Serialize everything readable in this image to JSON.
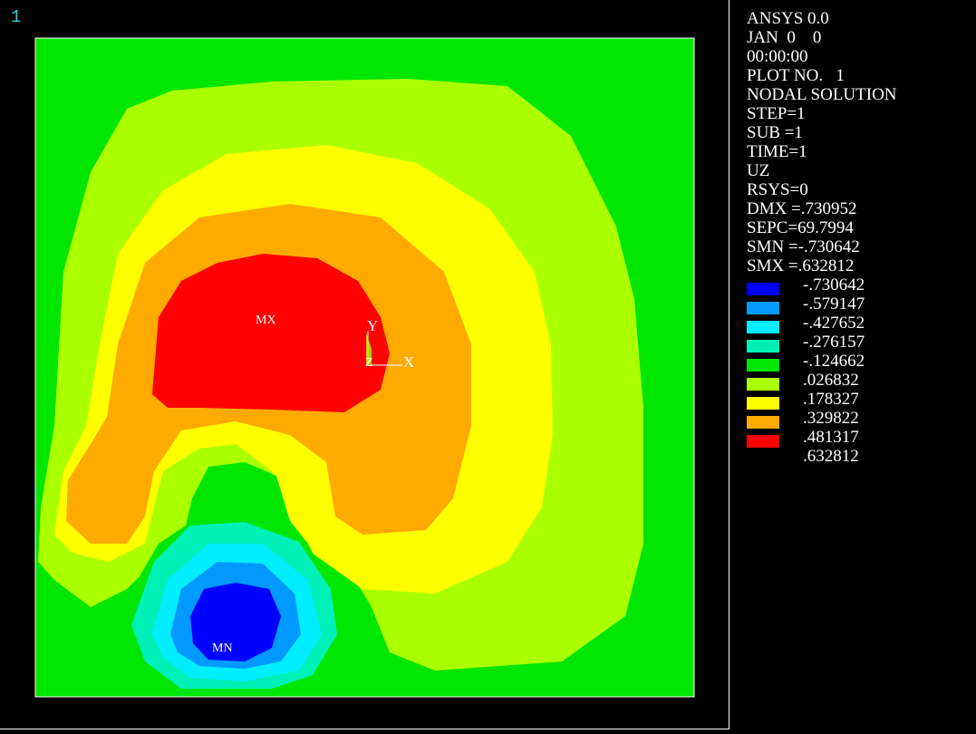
{
  "window": {
    "number": "1"
  },
  "info_lines": [
    "ANSYS 0.0",
    "JAN  0    0",
    "00:00:00",
    "PLOT NO.   1",
    "NODAL SOLUTION",
    "STEP=1",
    "SUB =1",
    "TIME=1",
    "UZ",
    "RSYS=0",
    "DMX =.730952",
    "SEPC=69.7994",
    "SMN =-.730642",
    "SMX =.632812"
  ],
  "legend": {
    "entries": [
      {
        "color": "#0000ff",
        "label": "-.730642"
      },
      {
        "color": "#0099ff",
        "label": "-.579147"
      },
      {
        "color": "#00eeff",
        "label": "-.427652"
      },
      {
        "color": "#00f0b8",
        "label": "-.276157"
      },
      {
        "color": "#00e600",
        "label": "-.124662"
      },
      {
        "color": "#aaff00",
        "label": ".026832"
      },
      {
        "color": "#ffff00",
        "label": ".178327"
      },
      {
        "color": "#ffaa00",
        "label": ".329822"
      },
      {
        "color": "#ff0000",
        "label": ".481317"
      }
    ],
    "max_label": ".632812"
  },
  "markers": {
    "max": "MX",
    "min": "MN"
  },
  "triad": {
    "x": "X",
    "y": "Y",
    "z": "Z"
  },
  "colors": {
    "background": "#000000",
    "frame": "#ffffff",
    "window_number": "#33cccc"
  }
}
